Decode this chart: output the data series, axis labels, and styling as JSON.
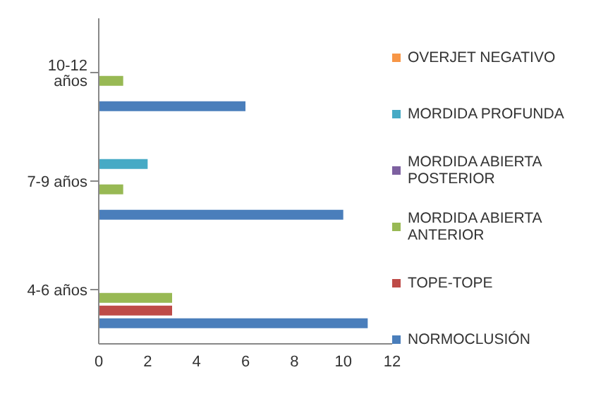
{
  "chart_data": {
    "type": "bar",
    "orientation": "horizontal",
    "categories": [
      "10-12 años",
      "7-9 años",
      "4-6 años"
    ],
    "series": [
      {
        "name": "NORMOCLUSIÓN",
        "color": "#4a7ebb",
        "values": [
          6,
          10,
          11
        ]
      },
      {
        "name": "TOPE-TOPE",
        "color": "#be4b48",
        "values": [
          null,
          null,
          3
        ]
      },
      {
        "name": "MORDIDA ABIERTA ANTERIOR",
        "color": "#98b954",
        "values": [
          1,
          1,
          3
        ]
      },
      {
        "name": "MORDIDA ABIERTA POSTERIOR",
        "color": "#7d60a0",
        "values": [
          null,
          null,
          null
        ]
      },
      {
        "name": "MORDIDA PROFUNDA",
        "color": "#46aac5",
        "values": [
          null,
          2,
          null
        ]
      },
      {
        "name": "OVERJET NEGATIVO",
        "color": "#f79646",
        "values": [
          null,
          null,
          null
        ]
      }
    ],
    "xlim": [
      0,
      12
    ],
    "xticks": [
      0,
      2,
      4,
      6,
      8,
      10,
      12
    ],
    "grid": false,
    "legend": "right"
  }
}
